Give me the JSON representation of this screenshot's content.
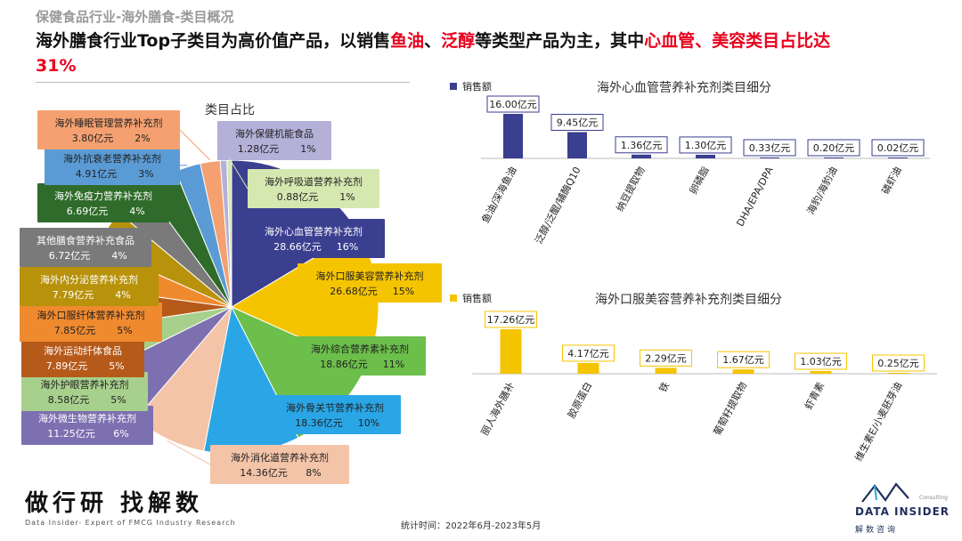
{
  "header": {
    "breadcrumb": "保健食品行业-海外膳食-类目概况",
    "headline_segments": [
      {
        "text": "海外膳食行业Top子类目为高价值产品，以销售",
        "highlight": false
      },
      {
        "text": "鱼油",
        "highlight": true
      },
      {
        "text": "、",
        "highlight": false
      },
      {
        "text": "泛醇",
        "highlight": true
      },
      {
        "text": "等类型产品为主，其中",
        "highlight": false
      },
      {
        "text": "心血管、美容类目占比达31%",
        "highlight": true
      }
    ]
  },
  "colors": {
    "highlight": "#e8001c",
    "bar_navy": "#3b3f8f",
    "bar_gold": "#f5c400"
  },
  "chart_data": [
    {
      "type": "pie",
      "title": "类目占比",
      "slices": [
        {
          "label": "海外心血管营养补充剂",
          "value": 28.66,
          "value_text": "28.66亿元",
          "pct": "16%",
          "color": "#3b3f8f"
        },
        {
          "label": "海外口服美容营养补充剂",
          "value": 26.68,
          "value_text": "26.68亿元",
          "pct": "15%",
          "color": "#f5c400"
        },
        {
          "label": "海外综合营养素补充剂",
          "value": 18.86,
          "value_text": "18.86亿元",
          "pct": "11%",
          "color": "#6cbf4a"
        },
        {
          "label": "海外骨关节营养补充剂",
          "value": 18.36,
          "value_text": "18.36亿元",
          "pct": "10%",
          "color": "#2aa6e6"
        },
        {
          "label": "海外消化道营养补充剂",
          "value": 14.36,
          "value_text": "14.36亿元",
          "pct": "8%",
          "color": "#f4c4a8"
        },
        {
          "label": "海外微生物营养补充剂",
          "value": 11.25,
          "value_text": "11.25亿元",
          "pct": "6%",
          "color": "#7d70b0"
        },
        {
          "label": "海外护眼营养补充剂",
          "value": 8.58,
          "value_text": "8.58亿元",
          "pct": "5%",
          "color": "#a8d08d"
        },
        {
          "label": "海外运动纤体食品",
          "value": 7.89,
          "value_text": "7.89亿元",
          "pct": "5%",
          "color": "#b65a1a"
        },
        {
          "label": "海外口服纤体营养补充剂",
          "value": 7.85,
          "value_text": "7.85亿元",
          "pct": "5%",
          "color": "#f08a2e"
        },
        {
          "label": "海外内分泌营养补充剂",
          "value": 7.79,
          "value_text": "7.79亿元",
          "pct": "4%",
          "color": "#b8920a"
        },
        {
          "label": "其他膳食营养补充食品",
          "value": 6.72,
          "value_text": "6.72亿元",
          "pct": "4%",
          "color": "#7a7a7a"
        },
        {
          "label": "海外免疫力营养补充剂",
          "value": 6.69,
          "value_text": "6.69亿元",
          "pct": "4%",
          "color": "#2f6b2a"
        },
        {
          "label": "海外抗衰老营养补充剂",
          "value": 4.91,
          "value_text": "4.91亿元",
          "pct": "3%",
          "color": "#5b9bd5"
        },
        {
          "label": "海外睡眠管理营养补充剂",
          "value": 3.8,
          "value_text": "3.80亿元",
          "pct": "2%",
          "color": "#f4a070"
        },
        {
          "label": "海外保健机能食品",
          "value": 1.28,
          "value_text": "1.28亿元",
          "pct": "1%",
          "color": "#b4b0d8"
        },
        {
          "label": "海外呼吸道营养补充剂",
          "value": 0.88,
          "value_text": "0.88亿元",
          "pct": "1%",
          "color": "#d5e8b0"
        }
      ]
    },
    {
      "type": "bar",
      "title": "海外心血管营养补充剂类目细分",
      "legend": "销售额",
      "categories": [
        "鱼油/深海鱼油",
        "泛醇/泛醌/辅酶Q10",
        "纳豆提取物",
        "卵磷脂",
        "DHA/EPA/DPA",
        "海豹/海豹油",
        "磷虾油"
      ],
      "values": [
        16.0,
        9.45,
        1.36,
        1.3,
        0.33,
        0.2,
        0.02
      ],
      "value_labels": [
        "16.00亿元",
        "9.45亿元",
        "1.36亿元",
        "1.30亿元",
        "0.33亿元",
        "0.20亿元",
        "0.02亿元"
      ],
      "ylim": [
        0,
        16
      ],
      "color": "#3b3f8f"
    },
    {
      "type": "bar",
      "title": "海外口服美容营养补充剂类目细分",
      "legend": "销售额",
      "categories": [
        "丽人海外膳补",
        "胶原蛋白",
        "铁",
        "葡萄籽提取物",
        "虾青素",
        "维生素E/小麦胚芽油"
      ],
      "values": [
        17.26,
        4.17,
        2.29,
        1.67,
        1.03,
        0.25
      ],
      "value_labels": [
        "17.26亿元",
        "4.17亿元",
        "2.29亿元",
        "1.67亿元",
        "1.03亿元",
        "0.25亿元"
      ],
      "ylim": [
        0,
        17.26
      ],
      "color": "#f5c400"
    }
  ],
  "footer": {
    "brand_cn": "做行研 找解数",
    "brand_en": "Data Insider- Expert of FMCG Industry Research",
    "note": "统计时间：2022年6月-2023年5月",
    "logo_en": "DATA INSIDER",
    "logo_cn": "解数咨询",
    "logo_sub": "Consulting"
  }
}
